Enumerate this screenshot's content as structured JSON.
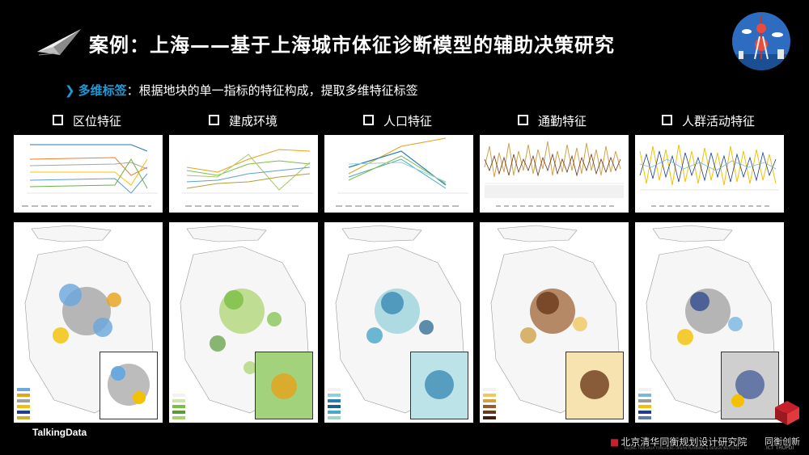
{
  "title": "案例：上海——基于上海城市体征诊断模型的辅助决策研究",
  "subtitle": {
    "key": "多维标签",
    "text": "：根据地块的单一指标的特征构成，提取多维特征标签"
  },
  "categories": [
    "区位特征",
    "建成环境",
    "人口特征",
    "通勤特征",
    "人群活动特征"
  ],
  "footer": {
    "brand": "TalkingData",
    "institute": "北京清华同衡规划设计研究院",
    "institute_en": "BEIJING TSINGHUA TONGHENG URBAN PLANNING & DESIGN INSTITUTE",
    "partner": "同衡创新",
    "partner_en": "ICT THUPDI"
  },
  "colors": {
    "accent": "#1e9ad6",
    "footer_red": "#c8202a",
    "maps": [
      [
        "#f2c200",
        "#6aa8dd",
        "#a0a0a0",
        "#e6a21a"
      ],
      [
        "#7cbf46",
        "#a8d36a",
        "#5a9a3a",
        "#cfe5a8"
      ],
      [
        "#49a8c8",
        "#2b7fae",
        "#8ed0d8",
        "#1b5f8a"
      ],
      [
        "#6b3a1c",
        "#9a5a2a",
        "#d1a24a",
        "#f0c860"
      ],
      [
        "#1f3f8a",
        "#9a9a9a",
        "#f2c200",
        "#7ab6e0"
      ]
    ]
  }
}
